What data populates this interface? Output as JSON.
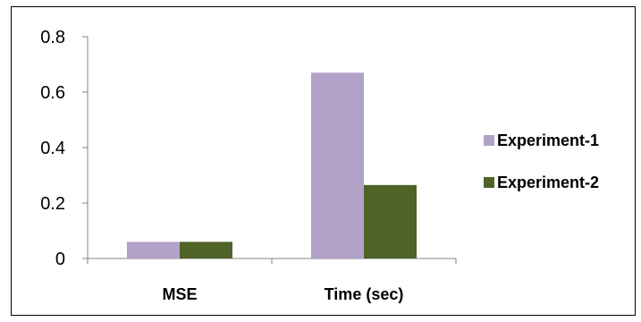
{
  "chart_data": {
    "type": "bar",
    "title": "",
    "xlabel": "",
    "ylabel": "",
    "categories": [
      "MSE",
      "Time (sec)"
    ],
    "series": [
      {
        "name": "Experiment-1",
        "values": [
          0.06,
          0.67
        ]
      },
      {
        "name": "Experiment-2",
        "values": [
          0.06,
          0.265
        ]
      }
    ],
    "ylim": [
      0,
      0.8
    ],
    "yticks": [
      "0",
      "0.2",
      "0.4",
      "0.6",
      "0.8"
    ],
    "grid": false,
    "legend_position": "right",
    "colors": {
      "Experiment-1": "#b3a2c7",
      "Experiment-2": "#4f6228"
    }
  }
}
